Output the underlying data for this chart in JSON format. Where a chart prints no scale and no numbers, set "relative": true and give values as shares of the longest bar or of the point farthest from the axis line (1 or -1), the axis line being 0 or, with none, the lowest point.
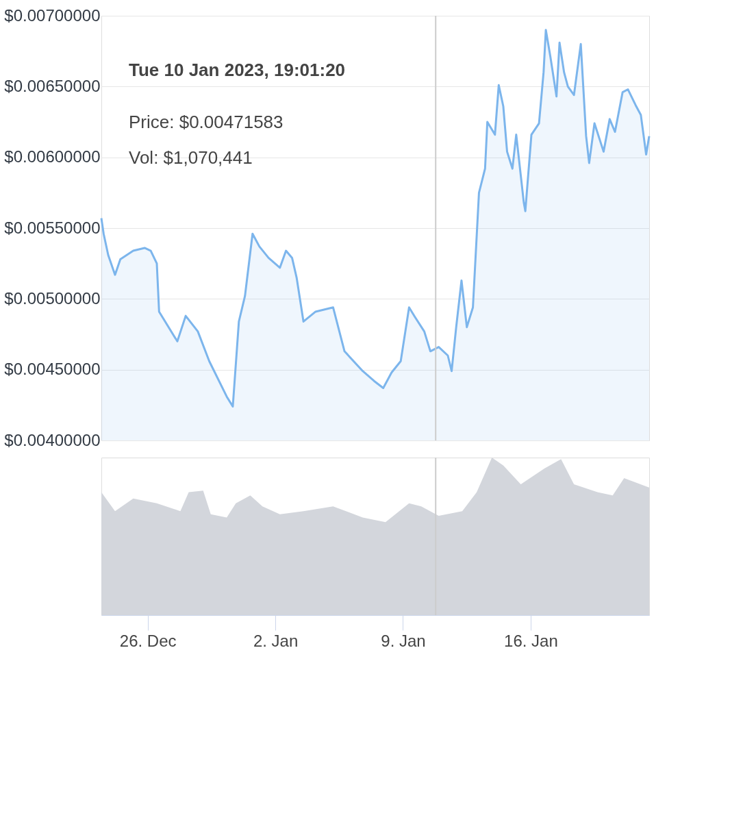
{
  "chart_data": [
    {
      "type": "area",
      "xlim": [
        "2022-12-23T11:00",
        "2023-01-22T12:00"
      ],
      "ylim": [
        0.004,
        0.007
      ],
      "yticks": [
        {
          "value": 0.004,
          "label": "$0.00400000"
        },
        {
          "value": 0.0045,
          "label": "$0.00450000"
        },
        {
          "value": 0.005,
          "label": "$0.00500000"
        },
        {
          "value": 0.0055,
          "label": "$0.00550000"
        },
        {
          "value": 0.006,
          "label": "$0.00600000"
        },
        {
          "value": 0.0065,
          "label": "$0.00650000"
        },
        {
          "value": 0.007,
          "label": "$0.00700000"
        }
      ],
      "tick_labels": "y",
      "grid": "y",
      "ref_lines": [
        {
          "axis": "x",
          "value": "2023-01-10T19:01",
          "color": "#cccccc"
        }
      ],
      "annotations": [
        "Tue 10 Jan 2023, 19:01:20",
        "Price: $0.00471583",
        "Vol: $1,070,441"
      ],
      "series": [
        {
          "color": "#7cb5ec",
          "x": [
            "2022-12-23T11:00",
            "2022-12-23T14:00",
            "2022-12-23T20:00",
            "2022-12-24T05:00",
            "2022-12-24T12:00",
            "2022-12-25T05:00",
            "2022-12-25T20:00",
            "2022-12-26T04:00",
            "2022-12-26T12:00",
            "2022-12-26T15:00",
            "2022-12-27T15:00",
            "2022-12-28T02:00",
            "2022-12-28T18:00",
            "2022-12-29T09:00",
            "2022-12-30T08:00",
            "2022-12-30T16:00",
            "2022-12-31T00:00",
            "2022-12-31T08:00",
            "2022-12-31T18:00",
            "2023-01-01T03:00",
            "2023-01-01T15:00",
            "2023-01-02T06:00",
            "2023-01-02T14:00",
            "2023-01-02T22:00",
            "2023-01-03T04:00",
            "2023-01-03T13:00",
            "2023-01-04T05:00",
            "2023-01-05T04:00",
            "2023-01-05T19:00",
            "2023-01-06T19:00",
            "2023-01-07T10:00",
            "2023-01-07T22:00",
            "2023-01-08T09:00",
            "2023-01-08T21:00",
            "2023-01-09T08:00",
            "2023-01-09T16:00",
            "2023-01-10T04:00",
            "2023-01-10T12:00",
            "2023-01-10T23:00",
            "2023-01-11T11:00",
            "2023-01-11T16:00",
            "2023-01-11T22:00",
            "2023-01-12T05:00",
            "2023-01-12T12:00",
            "2023-01-12T20:00",
            "2023-01-13T04:00",
            "2023-01-13T12:00",
            "2023-01-13T15:00",
            "2023-01-14T01:00",
            "2023-01-14T06:00",
            "2023-01-14T12:00",
            "2023-01-14T17:00",
            "2023-01-15T00:00",
            "2023-01-15T05:00",
            "2023-01-15T15:00",
            "2023-01-15T17:00",
            "2023-01-16T01:00",
            "2023-01-16T11:00",
            "2023-01-16T17:00",
            "2023-01-16T20:00",
            "2023-01-17T02:00",
            "2023-01-17T10:00",
            "2023-01-17T14:00",
            "2023-01-17T20:00",
            "2023-01-18T01:00",
            "2023-01-18T09:00",
            "2023-01-18T18:00",
            "2023-01-19T01:00",
            "2023-01-19T05:00",
            "2023-01-19T12:00",
            "2023-01-20T00:00",
            "2023-01-20T08:00",
            "2023-01-20T15:00",
            "2023-01-21T01:00",
            "2023-01-21T08:00",
            "2023-01-21T18:00",
            "2023-01-22T01:00",
            "2023-01-22T08:00",
            "2023-01-22T12:00"
          ],
          "values": [
            0.00557,
            0.00546,
            0.00531,
            0.00517,
            0.00528,
            0.00534,
            0.00536,
            0.00534,
            0.00525,
            0.00491,
            0.0047,
            0.00488,
            0.00477,
            0.00456,
            0.00431,
            0.00424,
            0.00484,
            0.00502,
            0.00546,
            0.00537,
            0.00529,
            0.00522,
            0.00534,
            0.00529,
            0.00515,
            0.00484,
            0.00491,
            0.00494,
            0.00463,
            0.00449,
            0.00442,
            0.00437,
            0.00448,
            0.00456,
            0.00494,
            0.00487,
            0.00477,
            0.00463,
            0.00466,
            0.0046,
            0.00449,
            0.0048,
            0.00513,
            0.0048,
            0.00494,
            0.00575,
            0.00592,
            0.00625,
            0.00616,
            0.00651,
            0.00636,
            0.00604,
            0.00592,
            0.00616,
            0.00568,
            0.00562,
            0.00616,
            0.00624,
            0.0066,
            0.0069,
            0.00671,
            0.00643,
            0.00681,
            0.0066,
            0.0065,
            0.00644,
            0.0068,
            0.00615,
            0.00596,
            0.00624,
            0.00604,
            0.00627,
            0.00618,
            0.00646,
            0.00648,
            0.00637,
            0.0063,
            0.00602,
            0.00615
          ]
        }
      ]
    },
    {
      "type": "area",
      "relative": true,
      "xlim": [
        "2022-12-23T11:00",
        "2023-01-22T12:00"
      ],
      "xticks": [
        {
          "value": "2022-12-26",
          "label": "26. Dec"
        },
        {
          "value": "2023-01-02",
          "label": "2. Jan"
        },
        {
          "value": "2023-01-09",
          "label": "9. Jan"
        },
        {
          "value": "2023-01-16",
          "label": "16. Jan"
        }
      ],
      "tick_labels": "x",
      "grid": false,
      "ref_lines": [
        {
          "axis": "x",
          "value": "2023-01-10T19:01",
          "color": "#cccccc"
        }
      ],
      "series": [
        {
          "color": "#d3d6dc",
          "x": [
            "2022-12-23T11:00",
            "2022-12-24T05:00",
            "2022-12-25T05:00",
            "2022-12-26T12:00",
            "2022-12-27T19:00",
            "2022-12-28T06:00",
            "2022-12-29T01:00",
            "2022-12-29T11:00",
            "2022-12-30T08:00",
            "2022-12-30T20:00",
            "2022-12-31T15:00",
            "2023-01-01T07:00",
            "2023-01-02T06:00",
            "2023-01-03T13:00",
            "2023-01-05T04:00",
            "2023-01-06T19:00",
            "2023-01-08T01:00",
            "2023-01-09T08:00",
            "2023-01-10T00:00",
            "2023-01-10T23:00",
            "2023-01-12T06:00",
            "2023-01-13T01:00",
            "2023-01-13T21:00",
            "2023-01-14T12:00",
            "2023-01-15T11:00",
            "2023-01-16T18:00",
            "2023-01-17T16:00",
            "2023-01-18T09:00",
            "2023-01-19T16:00",
            "2023-01-20T12:00",
            "2023-01-21T03:00",
            "2023-01-22T12:00"
          ],
          "values": [
            0.78,
            0.66,
            0.74,
            0.71,
            0.66,
            0.78,
            0.79,
            0.64,
            0.62,
            0.71,
            0.76,
            0.69,
            0.64,
            0.66,
            0.69,
            0.62,
            0.59,
            0.71,
            0.69,
            0.63,
            0.66,
            0.78,
            1,
            0.95,
            0.83,
            0.93,
            0.99,
            0.83,
            0.78,
            0.76,
            0.87,
            0.81
          ]
        }
      ]
    }
  ]
}
